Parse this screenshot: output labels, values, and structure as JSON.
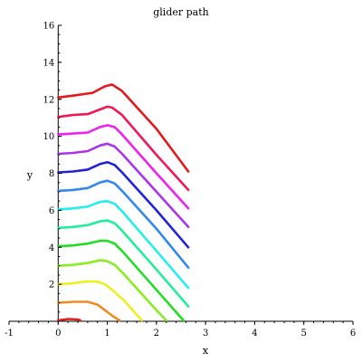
{
  "chart_data": {
    "type": "line",
    "title": "glider path",
    "xlabel": "x",
    "ylabel": "y",
    "xlim": [
      -1,
      6
    ],
    "ylim": [
      0,
      16
    ],
    "x_ticks": [
      -1,
      0,
      1,
      2,
      3,
      4,
      5,
      6
    ],
    "y_ticks": [
      2,
      4,
      6,
      8,
      10,
      12,
      14,
      16
    ],
    "grid": false,
    "legend": "none",
    "series": [
      {
        "color": "#e31a1c",
        "points": [
          [
            0,
            12.1
          ],
          [
            0.3,
            12.2
          ],
          [
            0.7,
            12.35
          ],
          [
            0.95,
            12.7
          ],
          [
            1.1,
            12.8
          ],
          [
            1.3,
            12.45
          ],
          [
            2.0,
            10.4
          ],
          [
            2.65,
            8.1
          ]
        ]
      },
      {
        "color": "#ee1a55",
        "points": [
          [
            0,
            11.05
          ],
          [
            0.3,
            11.15
          ],
          [
            0.6,
            11.2
          ],
          [
            0.85,
            11.45
          ],
          [
            1.0,
            11.6
          ],
          [
            1.1,
            11.55
          ],
          [
            1.3,
            11.15
          ],
          [
            2.0,
            9.0
          ],
          [
            2.65,
            7.1
          ]
        ]
      },
      {
        "color": "#ee22ee",
        "points": [
          [
            0,
            10.1
          ],
          [
            0.3,
            10.15
          ],
          [
            0.6,
            10.2
          ],
          [
            0.85,
            10.5
          ],
          [
            1.0,
            10.6
          ],
          [
            1.15,
            10.5
          ],
          [
            1.3,
            10.1
          ],
          [
            2.0,
            8.0
          ],
          [
            2.65,
            6.1
          ]
        ]
      },
      {
        "color": "#aa33ee",
        "points": [
          [
            0,
            9.05
          ],
          [
            0.3,
            9.1
          ],
          [
            0.6,
            9.2
          ],
          [
            0.85,
            9.5
          ],
          [
            1.0,
            9.6
          ],
          [
            1.15,
            9.45
          ],
          [
            1.3,
            9.05
          ],
          [
            2.0,
            7.0
          ],
          [
            2.65,
            5.1
          ]
        ]
      },
      {
        "color": "#2222dd",
        "points": [
          [
            0,
            8.05
          ],
          [
            0.3,
            8.1
          ],
          [
            0.6,
            8.2
          ],
          [
            0.85,
            8.5
          ],
          [
            1.0,
            8.6
          ],
          [
            1.15,
            8.45
          ],
          [
            1.3,
            8.05
          ],
          [
            2.0,
            6.0
          ],
          [
            2.65,
            4.0
          ]
        ]
      },
      {
        "color": "#3388ee",
        "points": [
          [
            0,
            7.05
          ],
          [
            0.3,
            7.1
          ],
          [
            0.6,
            7.2
          ],
          [
            0.85,
            7.5
          ],
          [
            1.0,
            7.6
          ],
          [
            1.15,
            7.45
          ],
          [
            1.3,
            7.05
          ],
          [
            2.0,
            5.0
          ],
          [
            2.65,
            2.9
          ]
        ]
      },
      {
        "color": "#22eeee",
        "points": [
          [
            0,
            6.05
          ],
          [
            0.3,
            6.1
          ],
          [
            0.6,
            6.2
          ],
          [
            0.85,
            6.45
          ],
          [
            1.0,
            6.5
          ],
          [
            1.15,
            6.35
          ],
          [
            1.3,
            5.95
          ],
          [
            2.0,
            3.8
          ],
          [
            2.65,
            1.8
          ]
        ]
      },
      {
        "color": "#22ee99",
        "points": [
          [
            0,
            5.05
          ],
          [
            0.3,
            5.1
          ],
          [
            0.6,
            5.2
          ],
          [
            0.85,
            5.4
          ],
          [
            1.0,
            5.45
          ],
          [
            1.15,
            5.3
          ],
          [
            1.3,
            4.9
          ],
          [
            2.0,
            2.8
          ],
          [
            2.65,
            0.8
          ]
        ]
      },
      {
        "color": "#22dd22",
        "points": [
          [
            0,
            4.05
          ],
          [
            0.3,
            4.1
          ],
          [
            0.6,
            4.2
          ],
          [
            0.85,
            4.35
          ],
          [
            1.0,
            4.35
          ],
          [
            1.15,
            4.2
          ],
          [
            1.3,
            3.8
          ],
          [
            2.0,
            1.7
          ],
          [
            2.55,
            0.05
          ]
        ]
      },
      {
        "color": "#88ee22",
        "points": [
          [
            0,
            3.0
          ],
          [
            0.3,
            3.05
          ],
          [
            0.6,
            3.15
          ],
          [
            0.85,
            3.3
          ],
          [
            1.0,
            3.25
          ],
          [
            1.15,
            3.05
          ],
          [
            1.3,
            2.65
          ],
          [
            2.0,
            0.6
          ],
          [
            2.2,
            0.05
          ]
        ]
      },
      {
        "color": "#eeee22",
        "points": [
          [
            0,
            2.0
          ],
          [
            0.3,
            2.05
          ],
          [
            0.55,
            2.15
          ],
          [
            0.8,
            2.15
          ],
          [
            0.95,
            2.0
          ],
          [
            1.1,
            1.7
          ],
          [
            1.35,
            1.1
          ],
          [
            1.7,
            0.05
          ]
        ]
      },
      {
        "color": "#f08a24",
        "points": [
          [
            0,
            1.0
          ],
          [
            0.3,
            1.05
          ],
          [
            0.6,
            1.05
          ],
          [
            0.8,
            0.9
          ],
          [
            0.95,
            0.6
          ],
          [
            1.1,
            0.3
          ],
          [
            1.25,
            0.05
          ]
        ]
      },
      {
        "color": "#dd2222",
        "points": [
          [
            0,
            0.05
          ],
          [
            0.2,
            0.12
          ],
          [
            0.4,
            0.1
          ],
          [
            0.45,
            0.05
          ]
        ]
      }
    ]
  }
}
